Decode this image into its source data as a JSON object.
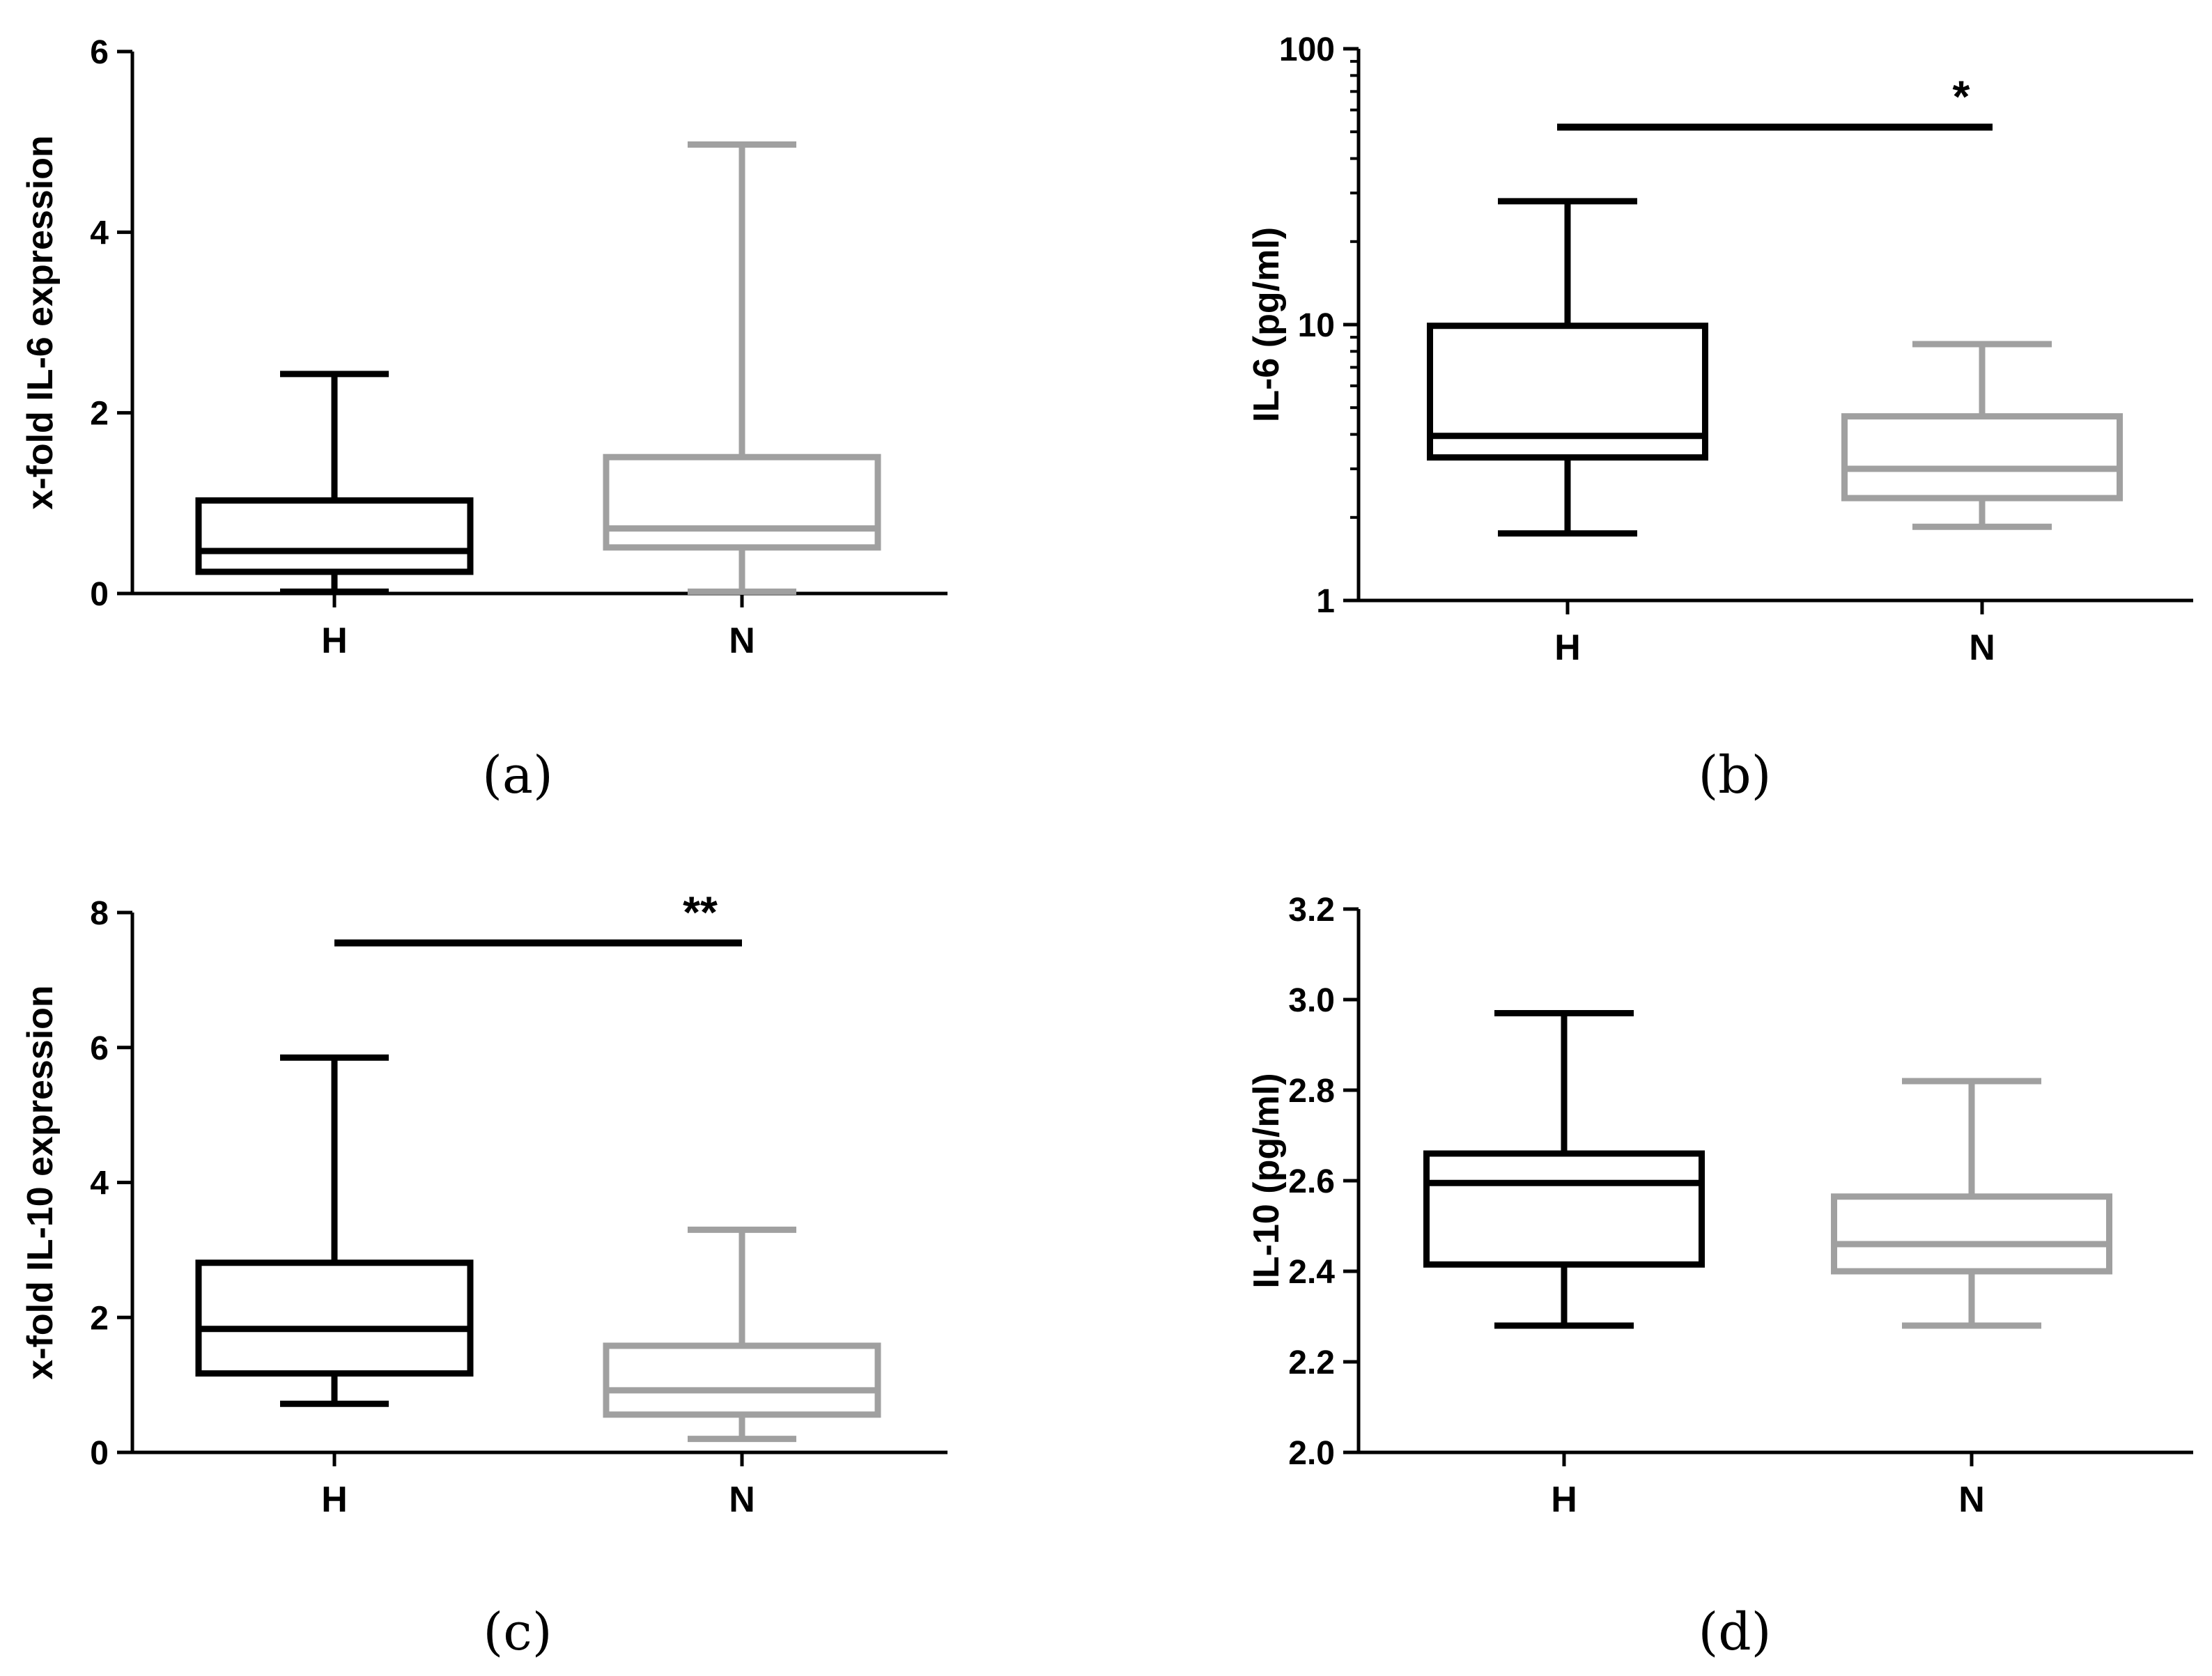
{
  "chart_data": [
    {
      "id": "a",
      "type": "boxplot",
      "caption": "(a)",
      "ylabel": "x-fold IL-6 expression",
      "xlabel": "",
      "yscale": "linear",
      "ylim": [
        0,
        6
      ],
      "yticks": [
        0,
        2,
        4,
        6
      ],
      "ytick_labels": [
        "0",
        "2",
        "4",
        "6"
      ],
      "categories": [
        "H",
        "N"
      ],
      "colors": [
        "#000000",
        "#a0a0a0"
      ],
      "boxes": [
        {
          "name": "H",
          "min": 0.02,
          "q1": 0.24,
          "median": 0.47,
          "q3": 1.03,
          "max": 2.43
        },
        {
          "name": "N",
          "min": 0.02,
          "q1": 0.51,
          "median": 0.72,
          "q3": 1.51,
          "max": 4.97
        }
      ],
      "significance": null
    },
    {
      "id": "b",
      "type": "boxplot",
      "caption": "(b)",
      "ylabel": "IL-6 (pg/ml)",
      "xlabel": "",
      "yscale": "log",
      "ylim": [
        1,
        100
      ],
      "yticks": [
        1,
        10,
        100
      ],
      "ytick_labels": [
        "1",
        "10",
        "100"
      ],
      "categories": [
        "H",
        "N"
      ],
      "colors": [
        "#000000",
        "#a0a0a0"
      ],
      "boxes": [
        {
          "name": "H",
          "min": 1.75,
          "q1": 3.3,
          "median": 3.95,
          "q3": 9.9,
          "max": 28
        },
        {
          "name": "N",
          "min": 1.85,
          "q1": 2.35,
          "median": 3.0,
          "q3": 4.65,
          "max": 8.5
        }
      ],
      "significance": {
        "label": "*",
        "y": 52
      }
    },
    {
      "id": "c",
      "type": "boxplot",
      "caption": "(c)",
      "ylabel": "x-fold IL-10 expression",
      "xlabel": "",
      "yscale": "linear",
      "ylim": [
        0,
        8
      ],
      "yticks": [
        0,
        2,
        4,
        6,
        8
      ],
      "ytick_labels": [
        "0",
        "2",
        "4",
        "6",
        "8"
      ],
      "categories": [
        "H",
        "N"
      ],
      "colors": [
        "#000000",
        "#a0a0a0"
      ],
      "boxes": [
        {
          "name": "H",
          "min": 0.72,
          "q1": 1.17,
          "median": 1.83,
          "q3": 2.81,
          "max": 5.85
        },
        {
          "name": "N",
          "min": 0.2,
          "q1": 0.56,
          "median": 0.92,
          "q3": 1.58,
          "max": 3.3
        }
      ],
      "significance": {
        "label": "**",
        "y": 7.55
      }
    },
    {
      "id": "d",
      "type": "boxplot",
      "caption": "(d)",
      "ylabel": "IL-10 (pg/ml)",
      "xlabel": "",
      "yscale": "linear",
      "ylim": [
        2.0,
        3.2
      ],
      "yticks": [
        2.0,
        2.2,
        2.4,
        2.6,
        2.8,
        3.0,
        3.2
      ],
      "ytick_labels": [
        "2.0",
        "2.2",
        "2.4",
        "2.6",
        "2.8",
        "3.0",
        "3.2"
      ],
      "categories": [
        "H",
        "N"
      ],
      "colors": [
        "#000000",
        "#a0a0a0"
      ],
      "boxes": [
        {
          "name": "H",
          "min": 2.28,
          "q1": 2.415,
          "median": 2.595,
          "q3": 2.66,
          "max": 2.97
        },
        {
          "name": "N",
          "min": 2.28,
          "q1": 2.4,
          "median": 2.46,
          "q3": 2.565,
          "max": 2.82
        }
      ],
      "significance": null
    }
  ]
}
